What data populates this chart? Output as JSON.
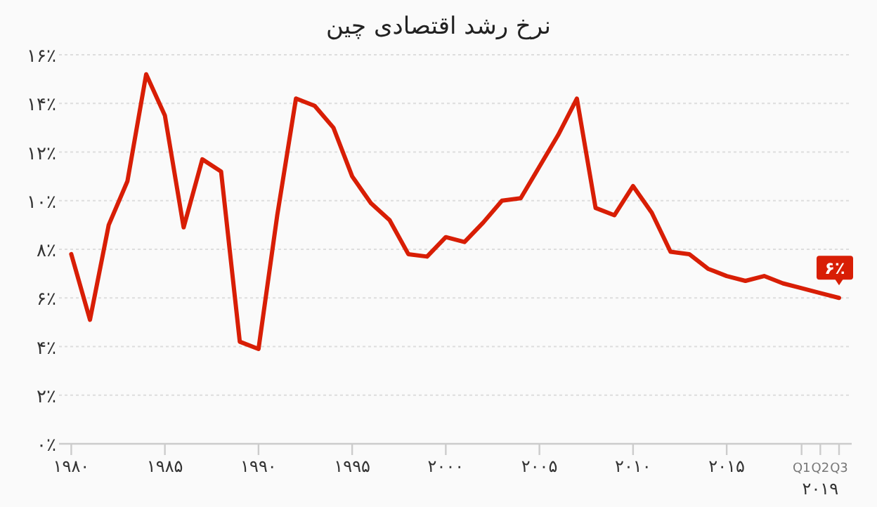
{
  "chart_data": {
    "type": "line",
    "title": "نرخ رشد اقتصادی چین",
    "categories": [
      "۱۹۸۰",
      null,
      null,
      null,
      null,
      "۱۹۸۵",
      null,
      null,
      null,
      null,
      "۱۹۹۰",
      null,
      null,
      null,
      null,
      "۱۹۹۵",
      null,
      null,
      null,
      null,
      "۲۰۰۰",
      null,
      null,
      null,
      null,
      "۲۰۰۵",
      null,
      null,
      null,
      null,
      "۲۰۱۰",
      null,
      null,
      null,
      null,
      "۲۰۱۵",
      null,
      null,
      null,
      "Q1",
      "Q2",
      "Q3"
    ],
    "series": [
      {
        "color": "#d81e05",
        "values": [
          7.8,
          5.1,
          9.0,
          10.8,
          15.2,
          13.5,
          8.9,
          11.7,
          11.2,
          4.2,
          3.9,
          9.4,
          14.2,
          13.9,
          13.0,
          11.0,
          9.9,
          9.2,
          7.8,
          7.7,
          8.5,
          8.3,
          9.1,
          10.0,
          10.1,
          11.4,
          12.7,
          14.2,
          9.7,
          9.4,
          10.6,
          9.5,
          7.9,
          7.8,
          7.2,
          6.9,
          6.7,
          6.9,
          6.6,
          6.4,
          6.2,
          6.0
        ]
      }
    ],
    "ylim": [
      0,
      16
    ],
    "yticks": [
      {
        "value": 0,
        "label": "۰٪"
      },
      {
        "value": 2,
        "label": "۲٪"
      },
      {
        "value": 4,
        "label": "۴٪"
      },
      {
        "value": 6,
        "label": "۶٪"
      },
      {
        "value": 8,
        "label": "۸٪"
      },
      {
        "value": 10,
        "label": "۱۰٪"
      },
      {
        "value": 12,
        "label": "۱۲٪"
      },
      {
        "value": 14,
        "label": "۱۴٪"
      },
      {
        "value": 16,
        "label": "۱۶٪"
      }
    ],
    "grid": "y",
    "marker": "none",
    "line_style": "solid",
    "annotations": [
      {
        "text": "۶٪",
        "x": "Q3",
        "y": 6.0
      },
      "۲۰۱۹"
    ]
  }
}
